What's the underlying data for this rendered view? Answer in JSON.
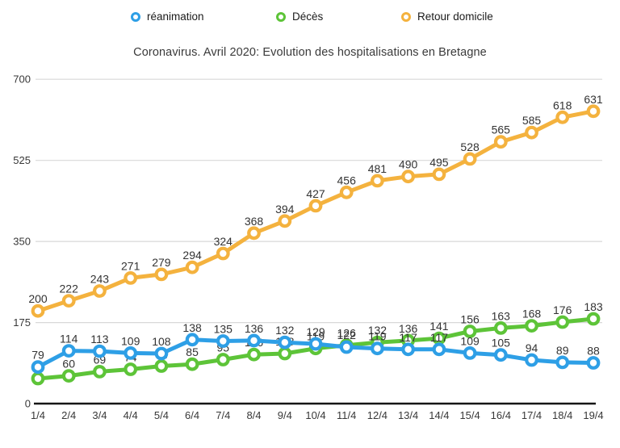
{
  "chart_data": {
    "type": "line",
    "title": "Coronavirus. Avril 2020: Evolution des hospitalisations en Bretagne",
    "categories": [
      "1/4",
      "2/4",
      "3/4",
      "4/4",
      "5/4",
      "6/4",
      "7/4",
      "8/4",
      "9/4",
      "10/4",
      "11/4",
      "12/4",
      "13/4",
      "14/4",
      "15/4",
      "16/4",
      "17/4",
      "18/4",
      "19/4"
    ],
    "series": [
      {
        "name": "réanimation",
        "color": "#2e9fe6",
        "values": [
          79,
          114,
          113,
          109,
          108,
          138,
          135,
          136,
          132,
          129,
          122,
          119,
          117,
          117,
          109,
          105,
          94,
          89,
          88
        ]
      },
      {
        "name": "Décès",
        "color": "#5dc438",
        "values": [
          54,
          60,
          69,
          74,
          81,
          85,
          95,
          106,
          108,
          119,
          126,
          132,
          136,
          141,
          156,
          163,
          168,
          176,
          183
        ]
      },
      {
        "name": "Retour domicile",
        "color": "#f4b23e",
        "values": [
          200,
          222,
          243,
          271,
          279,
          294,
          324,
          368,
          394,
          427,
          456,
          481,
          490,
          495,
          528,
          565,
          585,
          618,
          631
        ]
      }
    ],
    "xlabel": "",
    "ylabel": "",
    "ylim": [
      0,
      700
    ],
    "y_ticks": [
      0,
      175,
      350,
      525,
      700
    ],
    "grid": true,
    "legend_position": "top",
    "data_labels": true,
    "colors": {
      "grid": "#d8d8d8",
      "axis": "#161616",
      "label_text": "#333333"
    }
  }
}
